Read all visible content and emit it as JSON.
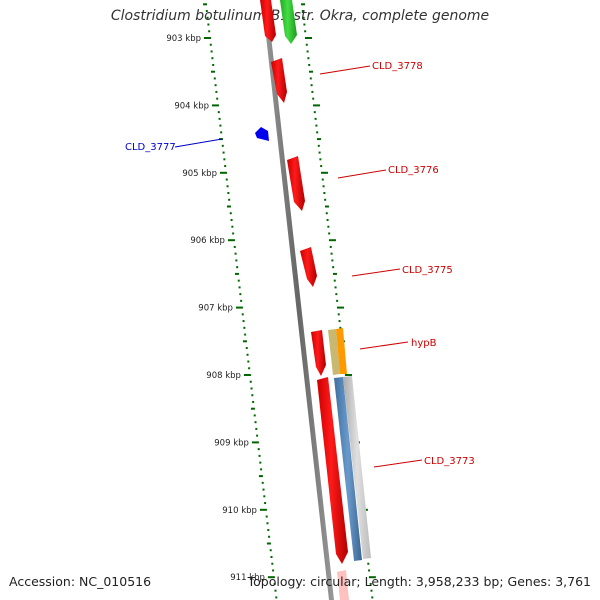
{
  "title": "Clostridium botulinum B1 str. Okra, complete genome",
  "accession_text": "Accession: NC_010516",
  "summary_text": "Topology: circular; Length: 3,958,233 bp; Genes: 3,761",
  "ruler": {
    "unit": "kbp",
    "ticks": [
      {
        "kbp": 903,
        "label": "903 kbp"
      },
      {
        "kbp": 904,
        "label": "904 kbp"
      },
      {
        "kbp": 905,
        "label": "905 kbp"
      },
      {
        "kbp": 906,
        "label": "906 kbp"
      },
      {
        "kbp": 907,
        "label": "907 kbp"
      },
      {
        "kbp": 908,
        "label": "908 kbp"
      },
      {
        "kbp": 909,
        "label": "909 kbp"
      },
      {
        "kbp": 910,
        "label": "910 kbp"
      },
      {
        "kbp": 911,
        "label": "911 kbp"
      }
    ]
  },
  "genes": [
    {
      "label": "CLD_3778",
      "color": "#cc0000"
    },
    {
      "label": "CLD_3777",
      "color": "#0000cc"
    },
    {
      "label": "CLD_3776",
      "color": "#cc0000"
    },
    {
      "label": "CLD_3775",
      "color": "#cc0000"
    },
    {
      "label": "hypB",
      "color": "#cc0000"
    },
    {
      "label": "CLD_3773",
      "color": "#cc0000"
    }
  ],
  "colors": {
    "backbone": "#808080",
    "tick": "#006600",
    "gene_red": "#ff0000",
    "gene_green": "#33cc33",
    "gene_blue": "#0000ee",
    "gene_orange": "#ff9900",
    "gene_olive": "#c8b870",
    "gene_steelblue": "#5588bb",
    "gene_grey": "#c8c8c8"
  }
}
